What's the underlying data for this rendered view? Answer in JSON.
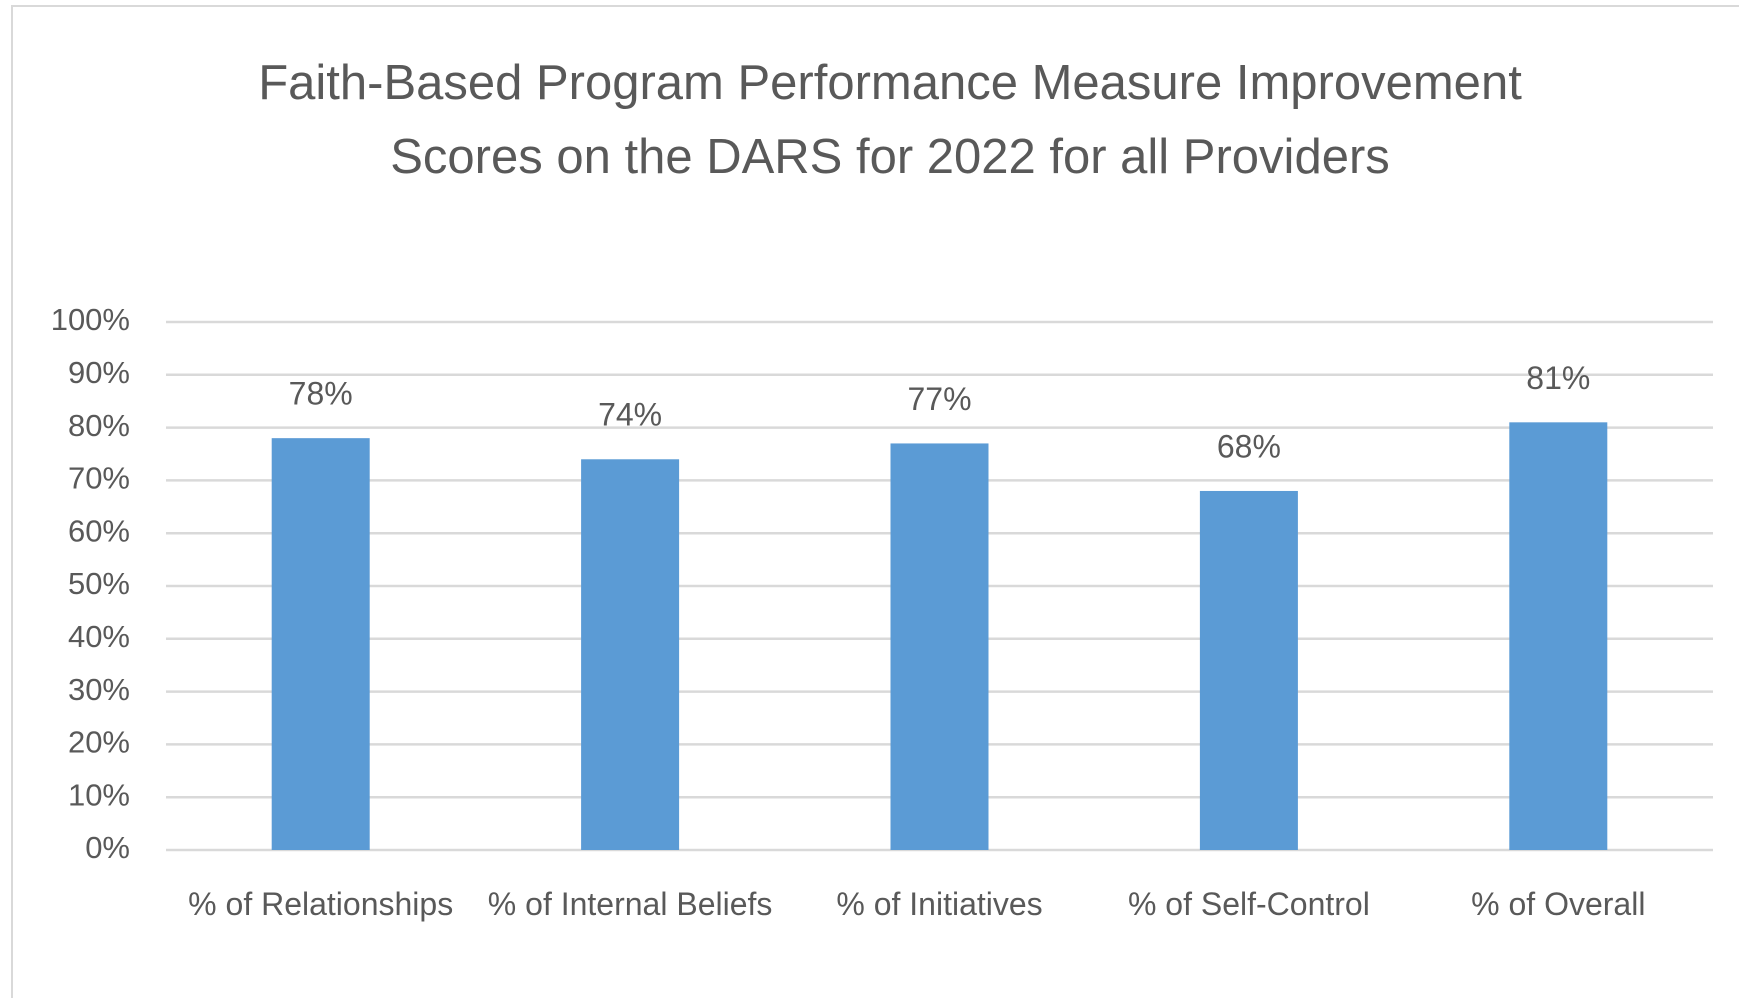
{
  "chart_data": {
    "type": "bar",
    "title": "Faith-Based Program Performance Measure Improvement Scores on the DARS for 2022 for all Providers",
    "categories": [
      "% of Relationships",
      "% of Internal Beliefs",
      "% of Initiatives",
      "% of Self-Control",
      "% of Overall"
    ],
    "values": [
      78,
      74,
      77,
      68,
      81
    ],
    "value_labels": [
      "78%",
      "74%",
      "77%",
      "68%",
      "81%"
    ],
    "color": "#5b9bd5",
    "ylim": [
      0,
      100
    ],
    "yticks": [
      {
        "value": 0,
        "label": "0%"
      },
      {
        "value": 10,
        "label": "10%"
      },
      {
        "value": 20,
        "label": "20%"
      },
      {
        "value": 30,
        "label": "30%"
      },
      {
        "value": 40,
        "label": "40%"
      },
      {
        "value": 50,
        "label": "50%"
      },
      {
        "value": 60,
        "label": "60%"
      },
      {
        "value": 70,
        "label": "70%"
      },
      {
        "value": 80,
        "label": "80%"
      },
      {
        "value": 90,
        "label": "90%"
      },
      {
        "value": 100,
        "label": "100%"
      }
    ],
    "grid": true
  }
}
